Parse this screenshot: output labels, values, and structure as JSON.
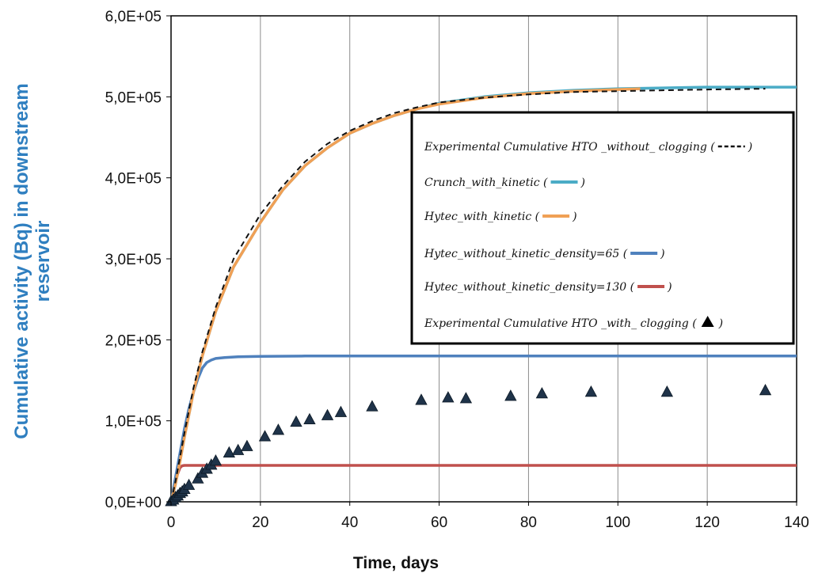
{
  "chart_data": {
    "type": "line",
    "title": "",
    "xlabel": "Time,  days",
    "ylabel_line1": "Cumulative  activity (Bq) in downstream",
    "ylabel_line2": "reservoir",
    "xlim": [
      0,
      140
    ],
    "ylim": [
      0,
      600000
    ],
    "x_ticks": [
      0,
      20,
      40,
      60,
      80,
      100,
      120,
      140
    ],
    "x_tick_labels": [
      "0",
      "20",
      "40",
      "60",
      "80",
      "100",
      "120",
      "140"
    ],
    "y_ticks": [
      0,
      100000,
      200000,
      300000,
      400000,
      500000,
      600000
    ],
    "y_tick_labels": [
      "0,0E+00",
      "1,0E+05",
      "2,0E+05",
      "3,0E+05",
      "4,0E+05",
      "5,0E+05",
      "6,0E+05"
    ],
    "grid": "vertical",
    "legend_position": "center-right",
    "series": [
      {
        "name": "Experimental  Cumulative HTO _without_ clogging (",
        "legend_suffix": ")",
        "style": "dashed",
        "color": "#111111",
        "x": [
          0,
          1,
          2,
          3,
          5,
          7,
          10,
          14,
          20,
          25,
          30,
          35,
          40,
          45,
          50,
          55,
          60,
          70,
          80,
          90,
          100,
          110,
          120,
          133
        ],
        "y": [
          0,
          25000,
          55000,
          85000,
          140000,
          185000,
          240000,
          300000,
          355000,
          390000,
          420000,
          442000,
          458000,
          470000,
          480000,
          487000,
          493000,
          499000,
          503000,
          506000,
          507000,
          508000,
          509000,
          510000
        ]
      },
      {
        "name": "Crunch_with_kinetic (",
        "legend_suffix": ")",
        "style": "solid",
        "color": "#4bacc6",
        "x": [
          0,
          1,
          2,
          3,
          5,
          7,
          10,
          14,
          20,
          25,
          30,
          35,
          40,
          45,
          50,
          55,
          60,
          70,
          80,
          90,
          100,
          110,
          120,
          140
        ],
        "y": [
          0,
          22000,
          50000,
          80000,
          135000,
          180000,
          235000,
          290000,
          345000,
          385000,
          415000,
          437000,
          455000,
          467000,
          477000,
          485000,
          492000,
          500000,
          505000,
          508000,
          510000,
          511000,
          512000,
          512000
        ]
      },
      {
        "name": "Hytec_with_kinetic  (",
        "legend_suffix": ")",
        "style": "solid",
        "color": "#f0a055",
        "x": [
          0,
          1,
          2,
          3,
          5,
          7,
          10,
          14,
          20,
          25,
          30,
          35,
          40,
          45,
          50,
          55,
          60,
          70,
          80,
          90,
          100,
          105
        ],
        "y": [
          0,
          22000,
          50000,
          80000,
          135000,
          180000,
          235000,
          290000,
          345000,
          385000,
          415000,
          437000,
          455000,
          467000,
          477000,
          485000,
          491000,
          499000,
          504000,
          507000,
          509000,
          510000
        ]
      },
      {
        "name": "Hytec_without_kinetic_density=65 (",
        "legend_suffix": ")",
        "style": "solid",
        "color": "#4f81bd",
        "x": [
          0,
          1,
          2,
          3,
          4,
          5,
          6,
          7,
          8,
          9,
          10,
          12,
          15,
          20,
          30,
          50,
          80,
          100,
          140
        ],
        "y": [
          0,
          30000,
          60000,
          90000,
          115000,
          135000,
          152000,
          165000,
          172000,
          175000,
          177000,
          178000,
          179000,
          179500,
          180000,
          180000,
          180000,
          180000,
          180000
        ]
      },
      {
        "name": "Hytec_without_kinetic_density=130 (",
        "legend_suffix": ")",
        "style": "solid",
        "color": "#c0504d",
        "x": [
          0,
          0.5,
          1,
          1.5,
          2,
          2.5,
          3,
          5,
          10,
          20,
          50,
          100,
          140
        ],
        "y": [
          0,
          12000,
          25000,
          35000,
          42000,
          44500,
          45000,
          45000,
          45000,
          45000,
          45000,
          45000,
          45000
        ]
      },
      {
        "name": "Experimental  Cumulative HTO _with_ clogging (",
        "legend_suffix": ")",
        "style": "marker-triangle",
        "color": "#1f3349",
        "x": [
          0,
          0.5,
          1,
          1.5,
          2,
          2.5,
          3,
          4,
          6,
          7,
          8,
          9,
          10,
          13,
          15,
          17,
          21,
          24,
          28,
          31,
          35,
          38,
          45,
          56,
          62,
          66,
          76,
          83,
          94,
          111,
          133
        ],
        "y": [
          0,
          2000,
          5000,
          7000,
          10000,
          12000,
          15000,
          20000,
          28000,
          35000,
          40000,
          45000,
          50000,
          60000,
          63000,
          68000,
          80000,
          88000,
          98000,
          101000,
          106000,
          110000,
          117000,
          125000,
          128000,
          127000,
          130000,
          133000,
          135000,
          135000,
          137000
        ]
      }
    ]
  }
}
